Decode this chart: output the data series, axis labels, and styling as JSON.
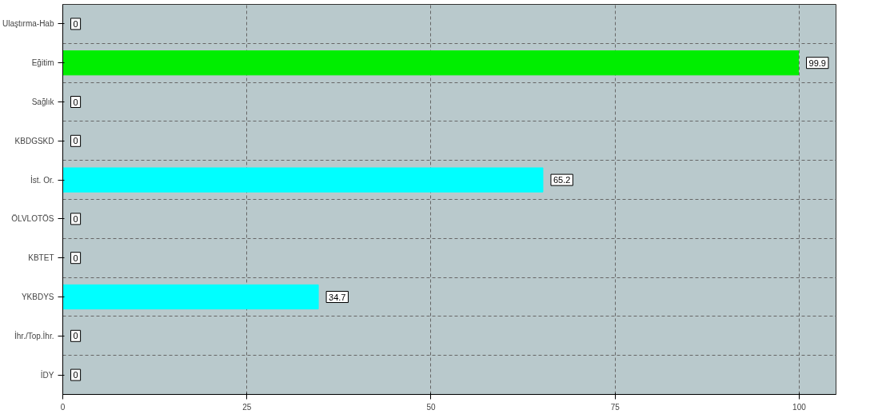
{
  "chart_data": {
    "type": "bar",
    "orientation": "horizontal",
    "categories": [
      "Ulaştırma-Hab",
      "Eğitim",
      "Sağlık",
      "KBDGSKD",
      "İst. Or.",
      "ÖLVLOTÖS",
      "KBTET",
      "YKBDYS",
      "İhr./Top.İhr.",
      "İDY"
    ],
    "values": [
      0,
      99.9,
      0,
      0,
      65.2,
      0,
      0,
      34.7,
      0,
      0
    ],
    "colors": [
      "#00ee00",
      "#00ee00",
      "#00cccc",
      "#00cccc",
      "#00ffff",
      "#00cccc",
      "#00cccc",
      "#00ffff",
      "#00cccc",
      "#00cccc"
    ],
    "xlim": [
      0,
      105
    ],
    "xticks": [
      0,
      25,
      50,
      75,
      100
    ],
    "grid": true,
    "data_labels": true
  }
}
